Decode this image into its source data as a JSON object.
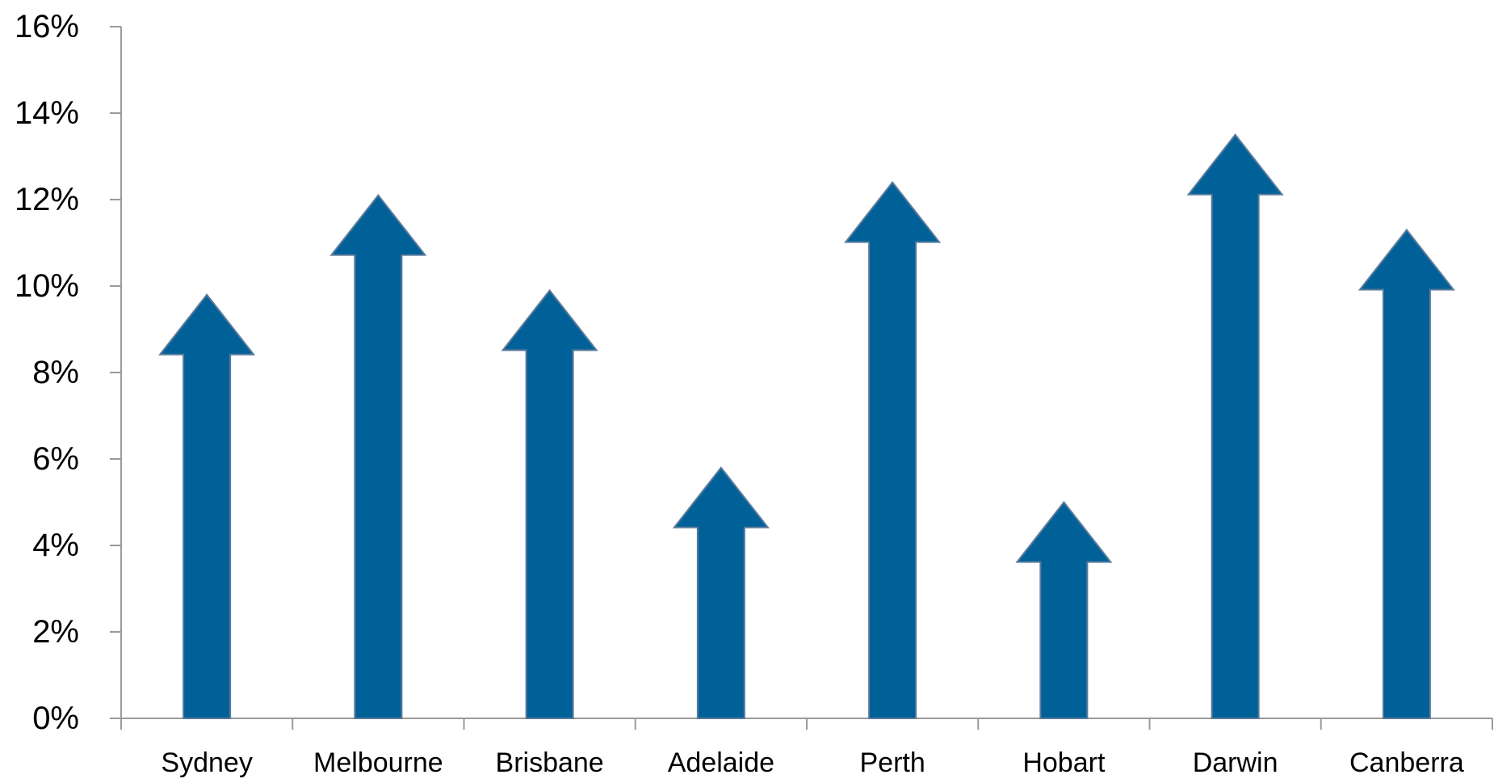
{
  "chart_data": {
    "type": "bar",
    "bar_shape": "arrow-up",
    "title": "",
    "xlabel": "",
    "ylabel": "",
    "categories": [
      "Sydney",
      "Melbourne",
      "Brisbane",
      "Adelaide",
      "Perth",
      "Hobart",
      "Darwin",
      "Canberra"
    ],
    "values": [
      9.8,
      12.1,
      9.9,
      5.8,
      12.4,
      5.0,
      13.5,
      11.3
    ],
    "ylim": [
      0,
      16
    ],
    "yticks": [
      0,
      2,
      4,
      6,
      8,
      10,
      12,
      14,
      16
    ],
    "ytick_labels": [
      "0%",
      "2%",
      "4%",
      "6%",
      "8%",
      "10%",
      "12%",
      "14%",
      "16%"
    ],
    "grid": false,
    "legend": "none",
    "colors": {
      "bar_fill": "#006199",
      "bar_stroke": "#5a7a9a",
      "axis": "#9a9a9a"
    }
  }
}
